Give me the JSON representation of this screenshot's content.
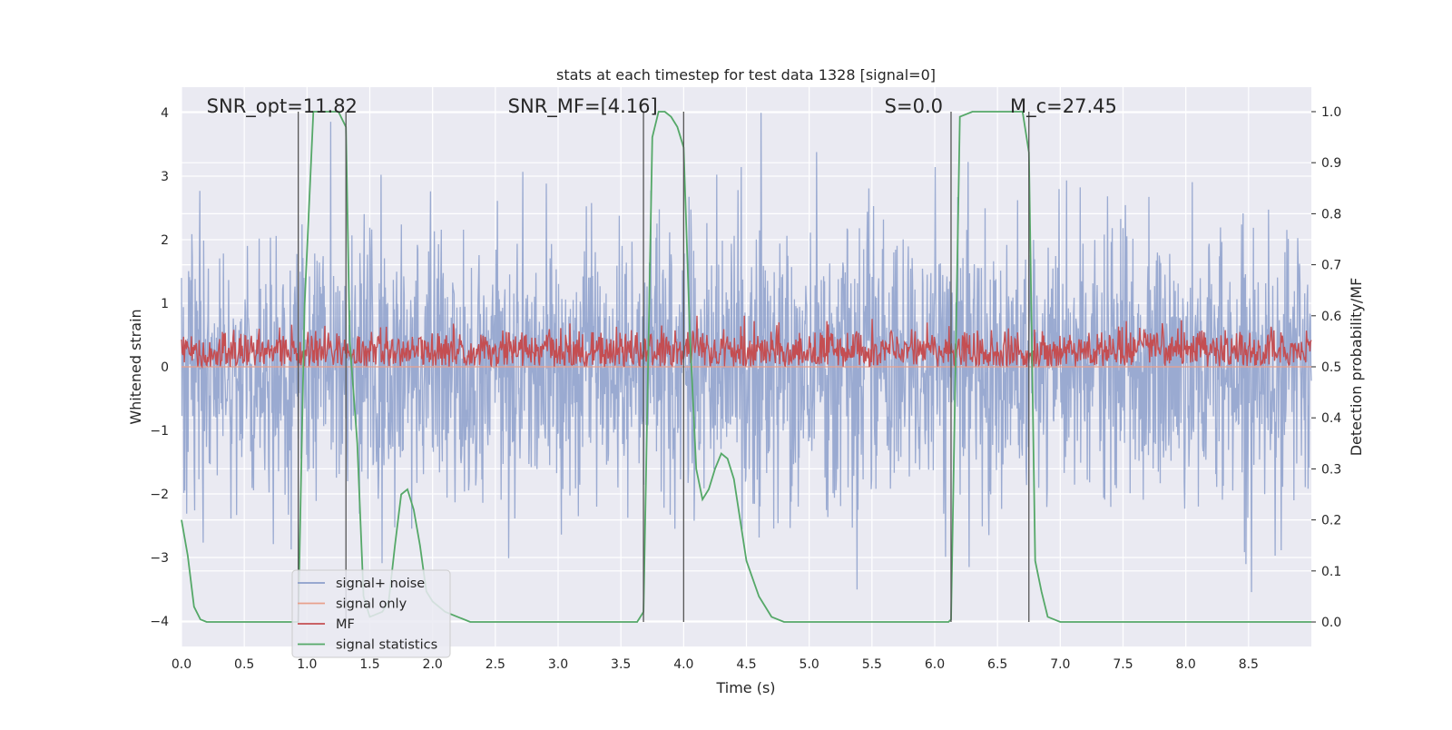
{
  "chart_data": {
    "type": "line",
    "title": "stats at each timestep for test data 1328 [signal=0]",
    "xlabel": "Time (s)",
    "ylabel": "Whitened strain",
    "y2label": "Detection probability/MF",
    "xlim": [
      0,
      9
    ],
    "ylim": [
      -4.4,
      4.4
    ],
    "y2lim": [
      -0.048,
      1.048
    ],
    "xticks": [
      "0.0",
      "0.5",
      "1.0",
      "1.5",
      "2.0",
      "2.5",
      "3.0",
      "3.5",
      "4.0",
      "4.5",
      "5.0",
      "5.5",
      "6.0",
      "6.5",
      "7.0",
      "7.5",
      "8.0",
      "8.5"
    ],
    "yticks": [
      "−4",
      "−3",
      "−2",
      "−1",
      "0",
      "1",
      "2",
      "3",
      "4"
    ],
    "y2ticks": [
      "0.0",
      "0.1",
      "0.2",
      "0.3",
      "0.4",
      "0.5",
      "0.6",
      "0.7",
      "0.8",
      "0.9",
      "1.0"
    ],
    "grid": true,
    "legend_placement": "lower-left",
    "annotations": [
      {
        "id": "snr-opt",
        "text": "SNR_opt=11.82",
        "x": 0.2
      },
      {
        "id": "snr-mf",
        "text": "SNR_MF=[4.16]",
        "x": 2.6
      },
      {
        "id": "s-val",
        "text": "S=0.0",
        "x": 5.6
      },
      {
        "id": "mc-val",
        "text": "M_c=27.45",
        "x": 6.6
      }
    ],
    "vlines": [
      0.93,
      1.31,
      3.68,
      4.0,
      6.13,
      6.75
    ],
    "series": [
      {
        "name": "signal+ noise",
        "color": "#8c9fcb",
        "kind": "noise",
        "description_values": {
          "sigma": 1.0,
          "x_range": [
            0,
            9
          ]
        }
      },
      {
        "name": "signal only",
        "color": "#e8a08c",
        "kind": "flat",
        "values": [
          0
        ]
      },
      {
        "name": "MF",
        "color": "#c44e52",
        "kind": "mf",
        "axis": "y2",
        "description_values": {
          "mean": 0.52,
          "range": [
            0.5,
            0.6
          ]
        }
      },
      {
        "name": "signal statistics",
        "color": "#55a868",
        "axis": "y2",
        "x": [
          0.0,
          0.05,
          0.1,
          0.15,
          0.2,
          0.3,
          0.5,
          0.7,
          0.88,
          0.93,
          0.98,
          1.05,
          1.15,
          1.25,
          1.31,
          1.34,
          1.4,
          1.45,
          1.5,
          1.6,
          1.65,
          1.7,
          1.75,
          1.8,
          1.85,
          1.9,
          1.95,
          2.0,
          2.1,
          2.2,
          2.3,
          2.5,
          3.0,
          3.5,
          3.63,
          3.68,
          3.75,
          3.8,
          3.85,
          3.9,
          3.95,
          4.0,
          4.05,
          4.1,
          4.15,
          4.2,
          4.25,
          4.3,
          4.35,
          4.4,
          4.5,
          4.6,
          4.7,
          4.8,
          5.0,
          5.5,
          6.0,
          6.11,
          6.13,
          6.2,
          6.3,
          6.5,
          6.7,
          6.75,
          6.8,
          6.85,
          6.9,
          6.95,
          7.0,
          7.5,
          8.0,
          8.5,
          9.0
        ],
        "values": [
          0.2,
          0.13,
          0.03,
          0.005,
          0.0,
          0.0,
          0.0,
          0.0,
          0.0,
          0.0,
          0.62,
          1.0,
          1.0,
          1.0,
          0.97,
          0.55,
          0.35,
          0.05,
          0.01,
          0.02,
          0.04,
          0.15,
          0.25,
          0.26,
          0.22,
          0.15,
          0.06,
          0.04,
          0.02,
          0.01,
          0.0,
          0.0,
          0.0,
          0.0,
          0.0,
          0.02,
          0.95,
          1.0,
          1.0,
          0.99,
          0.97,
          0.93,
          0.56,
          0.3,
          0.24,
          0.26,
          0.3,
          0.33,
          0.32,
          0.28,
          0.12,
          0.05,
          0.01,
          0.0,
          0.0,
          0.0,
          0.0,
          0.0,
          0.005,
          0.99,
          1.0,
          1.0,
          1.0,
          0.92,
          0.12,
          0.06,
          0.01,
          0.005,
          0.0,
          0.0,
          0.0,
          0.0,
          0.0
        ]
      }
    ]
  }
}
